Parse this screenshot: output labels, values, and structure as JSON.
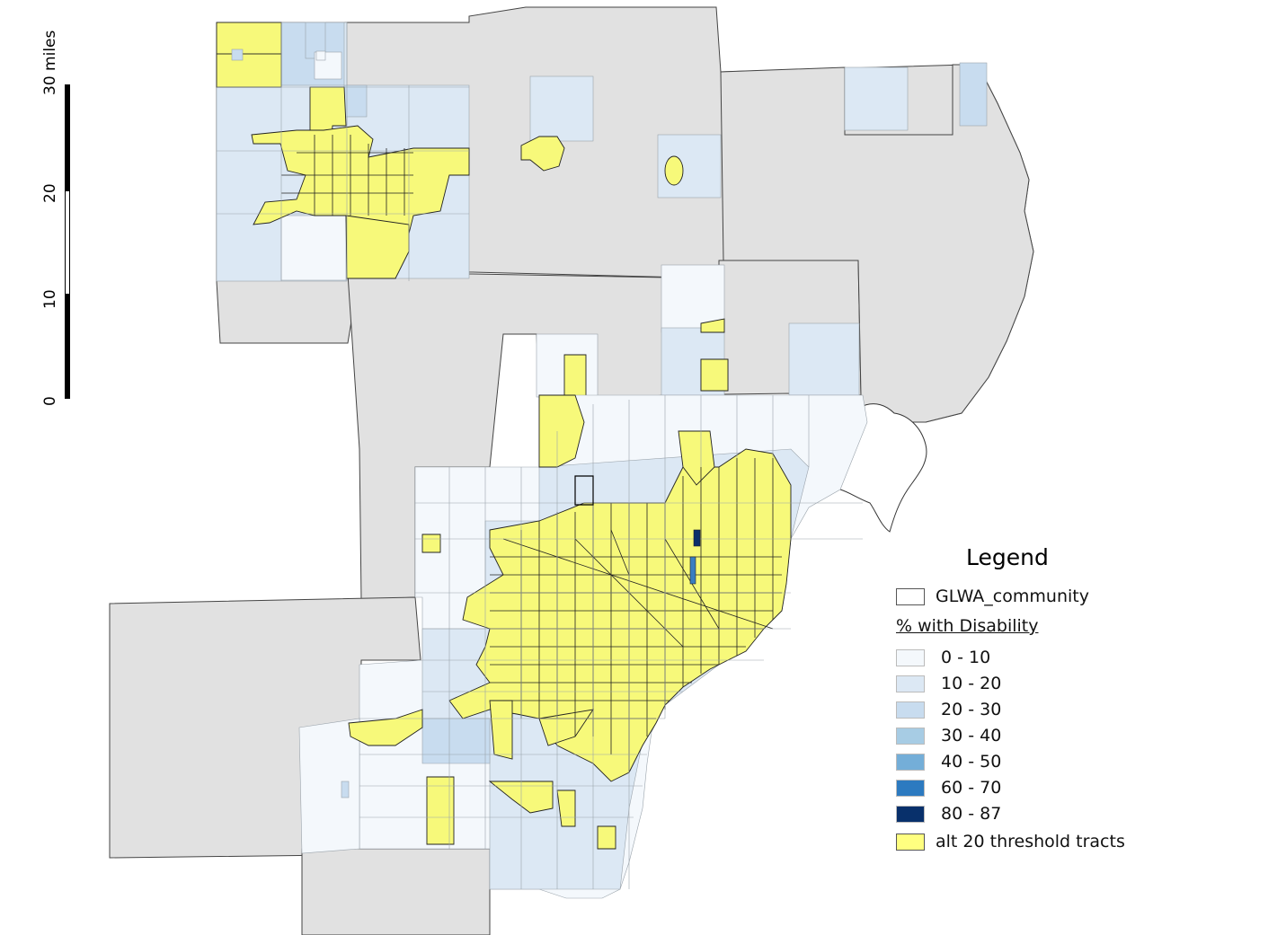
{
  "legend": {
    "title": "Legend",
    "community_label": "GLWA_community",
    "subtitle": "% with Disability",
    "classes": [
      {
        "label": "0 - 10",
        "color": "#f4f8fc"
      },
      {
        "label": "10 - 20",
        "color": "#dce8f4"
      },
      {
        "label": "20 - 30",
        "color": "#c8dcef"
      },
      {
        "label": "30 - 40",
        "color": "#a7cce4"
      },
      {
        "label": "40 - 50",
        "color": "#74aed8"
      },
      {
        "label": "60 - 70",
        "color": "#2c7ac0"
      },
      {
        "label": "80 - 87",
        "color": "#08306b"
      }
    ],
    "threshold_label": "alt 20 threshold tracts",
    "threshold_color": "#ffff80",
    "community_color": "#ffffff"
  },
  "scale_bar": {
    "unit_label": "30 miles",
    "ticks": [
      "0",
      "10",
      "20"
    ]
  },
  "colors": {
    "county_fill": "#e1e1e1",
    "highlight": "#f7f97a"
  }
}
